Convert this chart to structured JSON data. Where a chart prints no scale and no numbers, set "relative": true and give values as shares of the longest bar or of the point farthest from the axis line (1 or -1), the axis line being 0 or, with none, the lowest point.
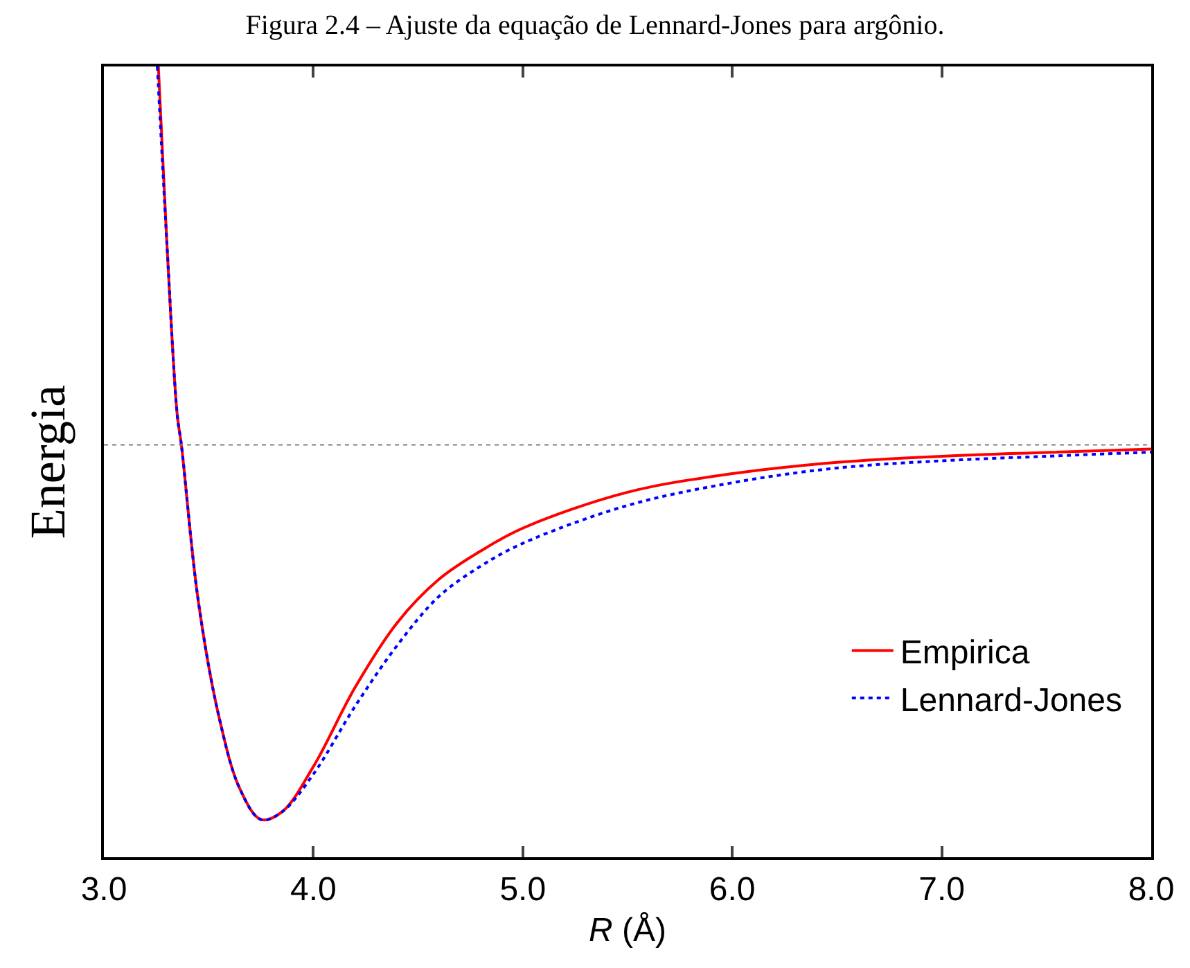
{
  "chart_data": {
    "type": "line",
    "title": "Figura 2.4 – Ajuste da equação de Lennard-Jones para argônio.",
    "xlabel": "R (Å)",
    "ylabel": "Energia",
    "relative": true,
    "xlim": [
      3.0,
      8.0
    ],
    "xticks": [
      {
        "value": 3,
        "label": "3.0"
      },
      {
        "value": 4,
        "label": "4.0"
      },
      {
        "value": 5,
        "label": "5.0"
      },
      {
        "value": 6,
        "label": "6.0"
      },
      {
        "value": 7,
        "label": "7.0"
      },
      {
        "value": 8,
        "label": "8.0"
      }
    ],
    "series": [
      {
        "name": "Empirica",
        "color": "#ff0000",
        "line_style": "solid",
        "x": [
          3.26,
          3.3,
          3.35,
          3.37,
          3.45,
          3.55,
          3.65,
          3.75,
          3.85,
          4.0,
          4.2,
          4.4,
          4.6,
          4.8,
          5.0,
          5.5,
          6.0,
          6.5,
          7.0,
          7.5,
          8.0
        ],
        "values": [
          1.0,
          0.54,
          0.08,
          0,
          -0.41,
          -0.72,
          -0.91,
          -0.99,
          -0.97,
          -0.85,
          -0.64,
          -0.47,
          -0.355,
          -0.28,
          -0.22,
          -0.125,
          -0.076,
          -0.046,
          -0.03,
          -0.02,
          -0.011
        ]
      },
      {
        "name": "Lennard-Jones",
        "color": "#0000ff",
        "line_style": "dotted",
        "x": [
          3.255,
          3.3,
          3.35,
          3.37,
          3.45,
          3.55,
          3.65,
          3.75,
          3.85,
          4.0,
          4.2,
          4.4,
          4.6,
          4.8,
          5.0,
          5.5,
          6.0,
          6.5,
          7.0,
          7.5,
          8.0
        ],
        "values": [
          1.0,
          0.54,
          0.08,
          0,
          -0.41,
          -0.72,
          -0.91,
          -0.99,
          -0.97,
          -0.87,
          -0.69,
          -0.53,
          -0.4,
          -0.32,
          -0.26,
          -0.16,
          -0.1,
          -0.061,
          -0.042,
          -0.03,
          -0.019
        ]
      }
    ],
    "ref_lines": [
      {
        "axis": "y",
        "value": 0,
        "color": "#808080",
        "line_style": "dotted"
      }
    ],
    "legend": "bottom right"
  }
}
